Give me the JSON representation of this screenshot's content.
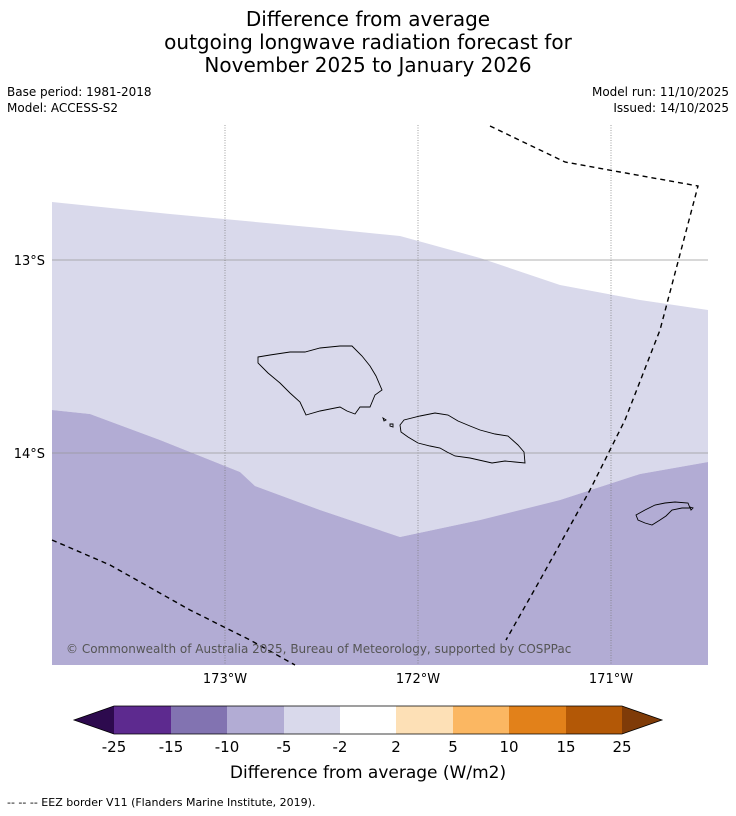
{
  "title": {
    "line1": "Difference from average",
    "line2": "outgoing longwave radiation forecast for",
    "line3": "November 2025 to January 2026"
  },
  "meta": {
    "base_period": "Base period: 1981-2018",
    "model": "Model: ACCESS-S2",
    "model_run": "Model run: 11/10/2025",
    "issued": "Issued: 14/10/2025"
  },
  "map": {
    "lat_labels": [
      "13°S",
      "14°S"
    ],
    "lon_labels": [
      "173°W",
      "172°W",
      "171°W"
    ],
    "copyright": "© Commonwealth of Australia 2025, Bureau of Meteorology, supported by COSPPac",
    "fill_colors": {
      "light": "#d9d9eb",
      "mid": "#b2acd4",
      "border_line": "#000000"
    }
  },
  "colorbar": {
    "ticks": [
      "-25",
      "-15",
      "-10",
      "-5",
      "-2",
      "2",
      "5",
      "10",
      "15",
      "25"
    ],
    "colors": [
      "#2d0a4e",
      "#5d2a8f",
      "#8273b1",
      "#b2acd4",
      "#d9d9eb",
      "#ffffff",
      "#fde0b6",
      "#fbb762",
      "#e2811a",
      "#b35806",
      "#7f3b08"
    ],
    "label": "Difference from average (W/m2)"
  },
  "footer": {
    "legend": "-- -- -- EEZ border V11 (Flanders Marine Institute, 2019)."
  }
}
